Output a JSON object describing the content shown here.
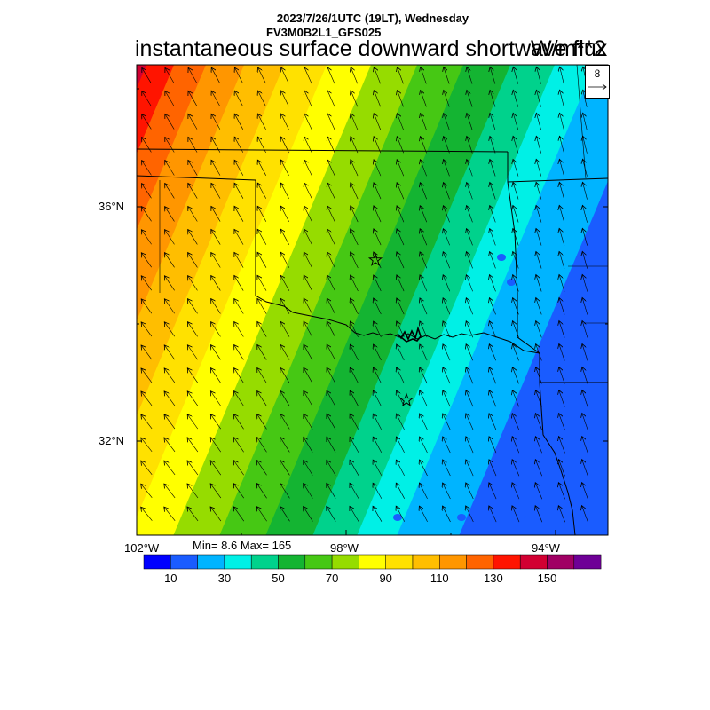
{
  "header": {
    "datetime": "2023/7/26/1UTC (19LT), Wednesday",
    "model": "FV3M0B2L1_GFS025",
    "variable": "instantaneous surface downward shortwave flux",
    "units": "W/m**2"
  },
  "vector_reference": {
    "value": "8"
  },
  "axes": {
    "lat_labels": [
      "36°N",
      "32°N"
    ],
    "lon_labels": [
      "102°W",
      "98°W",
      "94°W"
    ]
  },
  "stats": {
    "text": "Min= 8.6 Max= 165"
  },
  "colorbar": {
    "colors": [
      "#0000ff",
      "#1a5cff",
      "#00b4ff",
      "#00f0e6",
      "#00d28c",
      "#14b432",
      "#46c814",
      "#96dc00",
      "#ffff00",
      "#ffe100",
      "#ffbe00",
      "#ff9600",
      "#ff6400",
      "#ff1400",
      "#d20032",
      "#a00064",
      "#6e0096"
    ],
    "labels": [
      "10",
      "30",
      "50",
      "70",
      "90",
      "110",
      "130",
      "150"
    ]
  },
  "map": {
    "markers": [
      {
        "name": "star-marker-okc"
      },
      {
        "name": "star-marker-dfw"
      }
    ]
  }
}
